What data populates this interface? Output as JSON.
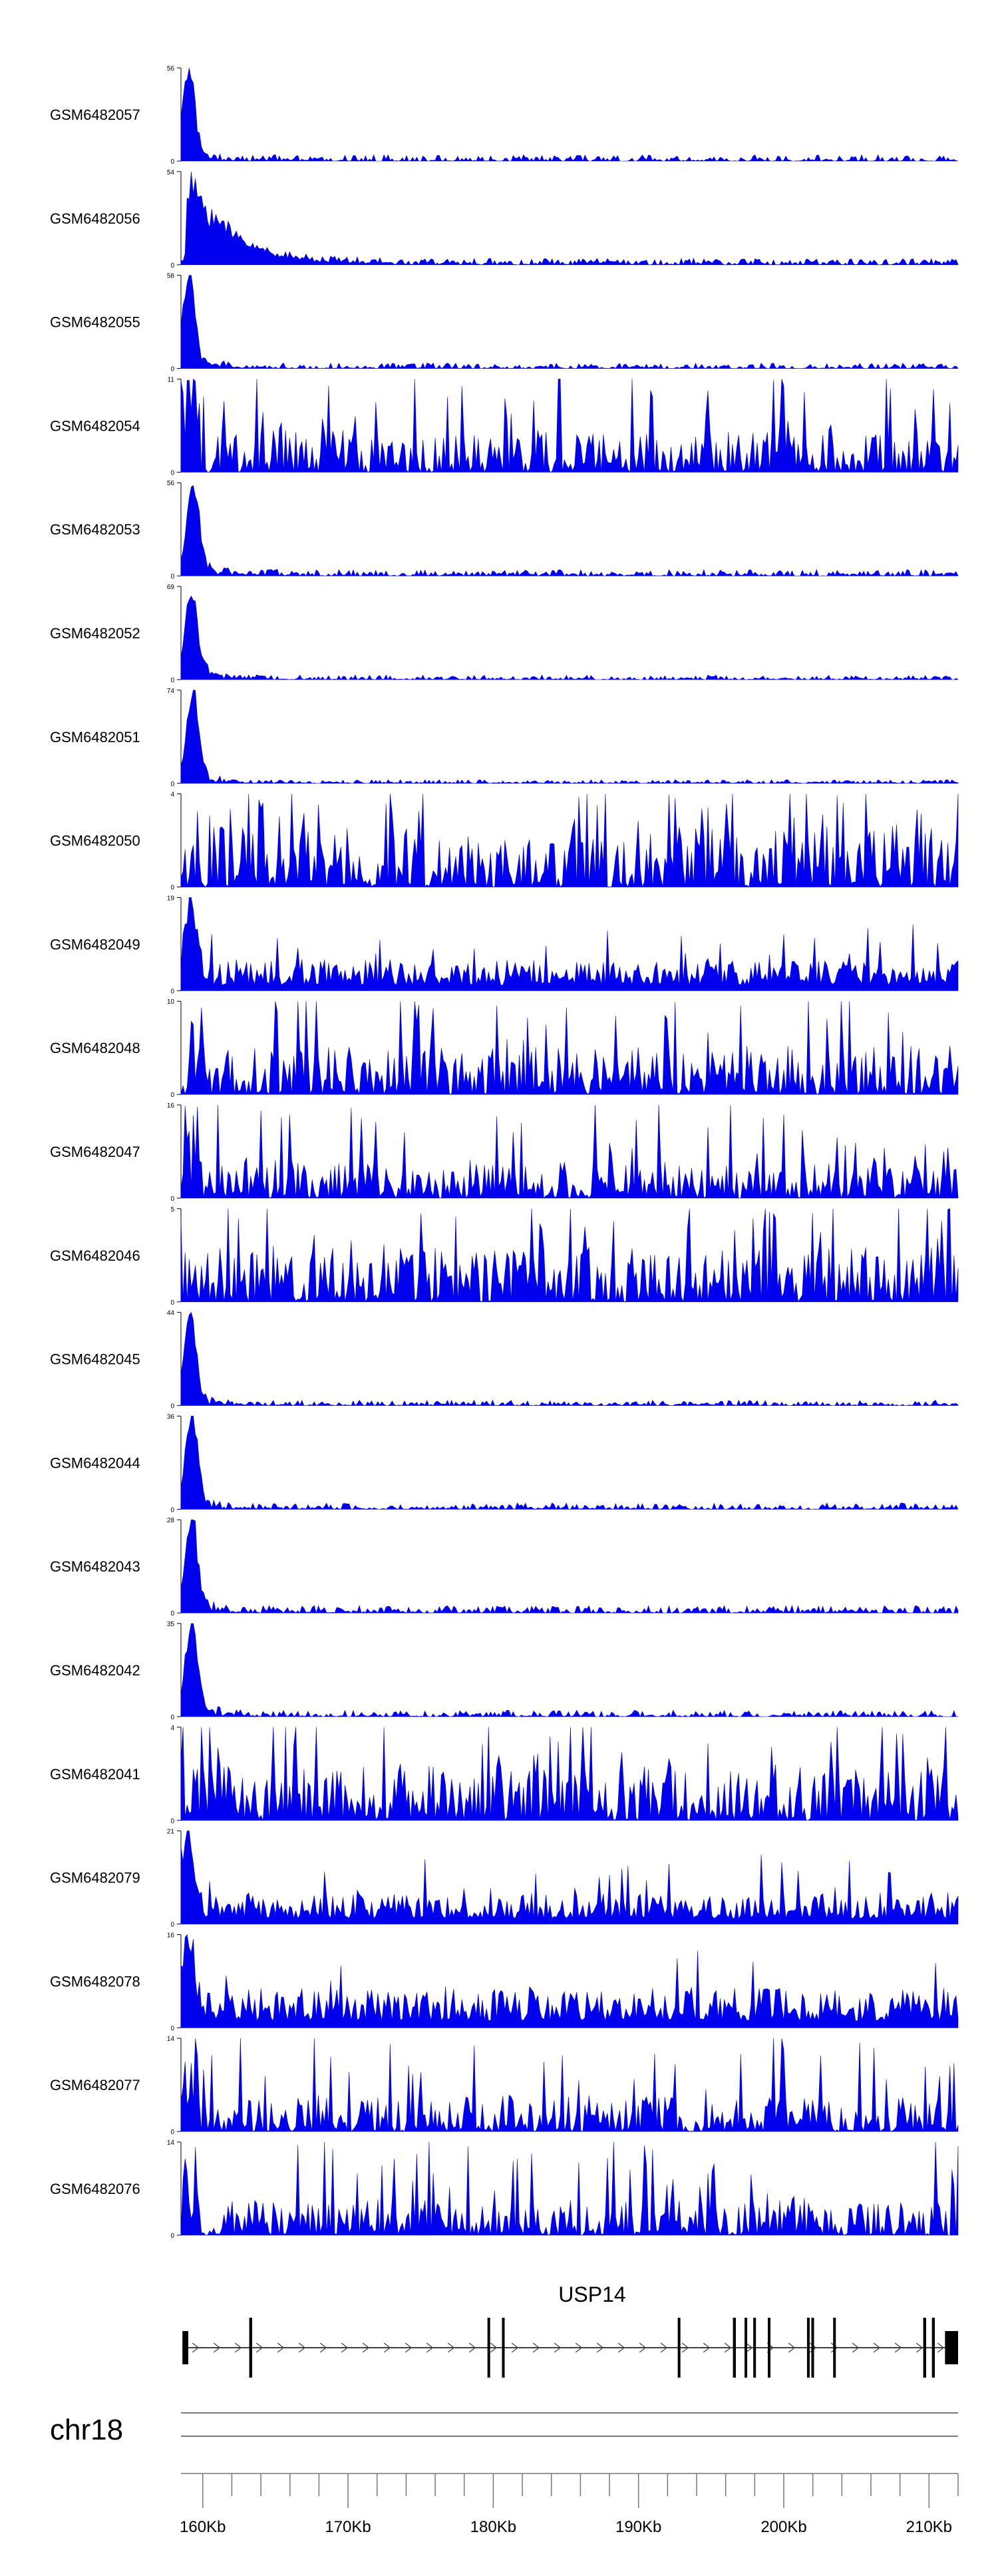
{
  "chart_data": {
    "type": "area",
    "title": "",
    "xlabel": "",
    "ylabel": "",
    "region": {
      "chromosome": "chr18",
      "start_kb": 158.5,
      "end_kb": 212.0
    },
    "tracks": [
      {
        "name": "GSM6482057",
        "ymax": 56,
        "ymin": 0,
        "profile": "peak",
        "peak_kb": 159.0,
        "baseline": 0.07
      },
      {
        "name": "GSM6482056",
        "ymax": 54,
        "ymin": 0,
        "profile": "broad",
        "peak_kb": 159.5,
        "baseline": 0.07
      },
      {
        "name": "GSM6482055",
        "ymax": 58,
        "ymin": 0,
        "profile": "peak",
        "peak_kb": 159.0,
        "baseline": 0.06
      },
      {
        "name": "GSM6482054",
        "ymax": 11,
        "ymin": 0,
        "profile": "noisy",
        "peak_kb": 159.0,
        "baseline": 0.35
      },
      {
        "name": "GSM6482053",
        "ymax": 56,
        "ymin": 0,
        "profile": "peak",
        "peak_kb": 159.3,
        "baseline": 0.07
      },
      {
        "name": "GSM6482052",
        "ymax": 69,
        "ymin": 0,
        "profile": "peak",
        "peak_kb": 159.2,
        "baseline": 0.05
      },
      {
        "name": "GSM6482051",
        "ymax": 74,
        "ymin": 0,
        "profile": "peak",
        "peak_kb": 159.3,
        "baseline": 0.04
      },
      {
        "name": "GSM6482050",
        "ymax": 4,
        "ymin": 0,
        "profile": "noisy",
        "peak_kb": 160.0,
        "baseline": 0.5
      },
      {
        "name": "GSM6482049",
        "ymax": 19,
        "ymin": 0,
        "profile": "mid",
        "peak_kb": 159.2,
        "baseline": 0.2
      },
      {
        "name": "GSM6482048",
        "ymax": 10,
        "ymin": 0,
        "profile": "noisy",
        "peak_kb": 159.5,
        "baseline": 0.4
      },
      {
        "name": "GSM6482047",
        "ymax": 16,
        "ymin": 0,
        "profile": "noisy",
        "peak_kb": 159.0,
        "baseline": 0.3
      },
      {
        "name": "GSM6482046",
        "ymax": 5,
        "ymin": 0,
        "profile": "noisy",
        "peak_kb": 160.0,
        "baseline": 0.45
      },
      {
        "name": "GSM6482045",
        "ymax": 44,
        "ymin": 0,
        "profile": "peak",
        "peak_kb": 159.1,
        "baseline": 0.06
      },
      {
        "name": "GSM6482044",
        "ymax": 36,
        "ymin": 0,
        "profile": "peak",
        "peak_kb": 159.2,
        "baseline": 0.07
      },
      {
        "name": "GSM6482043",
        "ymax": 28,
        "ymin": 0,
        "profile": "peak",
        "peak_kb": 159.2,
        "baseline": 0.08
      },
      {
        "name": "GSM6482042",
        "ymax": 35,
        "ymin": 0,
        "profile": "peak",
        "peak_kb": 159.2,
        "baseline": 0.07
      },
      {
        "name": "GSM6482041",
        "ymax": 4,
        "ymin": 0,
        "profile": "noisy",
        "peak_kb": 160.0,
        "baseline": 0.45
      },
      {
        "name": "GSM6482079",
        "ymax": 21,
        "ymin": 0,
        "profile": "mid",
        "peak_kb": 159.0,
        "baseline": 0.2
      },
      {
        "name": "GSM6482078",
        "ymax": 16,
        "ymin": 0,
        "profile": "mid",
        "peak_kb": 159.0,
        "baseline": 0.25
      },
      {
        "name": "GSM6482077",
        "ymax": 14,
        "ymin": 0,
        "profile": "noisy",
        "peak_kb": 159.0,
        "baseline": 0.3
      },
      {
        "name": "GSM6482076",
        "ymax": 14,
        "ymin": 0,
        "profile": "noisy",
        "peak_kb": 159.0,
        "baseline": 0.3
      }
    ],
    "gene": {
      "name": "USP14",
      "strand": "+",
      "start_kb": 158.6,
      "end_kb": 212.0,
      "exons_kb": [
        [
          158.6,
          159.0
        ],
        [
          163.2,
          163.4
        ],
        [
          179.6,
          179.75
        ],
        [
          180.6,
          180.75
        ],
        [
          192.7,
          192.8
        ],
        [
          196.5,
          196.7
        ],
        [
          197.3,
          197.4
        ],
        [
          197.9,
          198.0
        ],
        [
          198.9,
          199.0
        ],
        [
          201.6,
          201.7
        ],
        [
          201.9,
          202.0
        ],
        [
          203.4,
          203.55
        ],
        [
          209.6,
          209.8
        ],
        [
          210.2,
          210.4
        ],
        [
          211.1,
          212.0
        ]
      ]
    },
    "axis": {
      "tick_kb": [
        160,
        170,
        180,
        190,
        200,
        210
      ],
      "tick_labels": [
        "160Kb",
        "170Kb",
        "180Kb",
        "190Kb",
        "200Kb",
        "210Kb"
      ],
      "minor_tick_kb": 2
    }
  }
}
